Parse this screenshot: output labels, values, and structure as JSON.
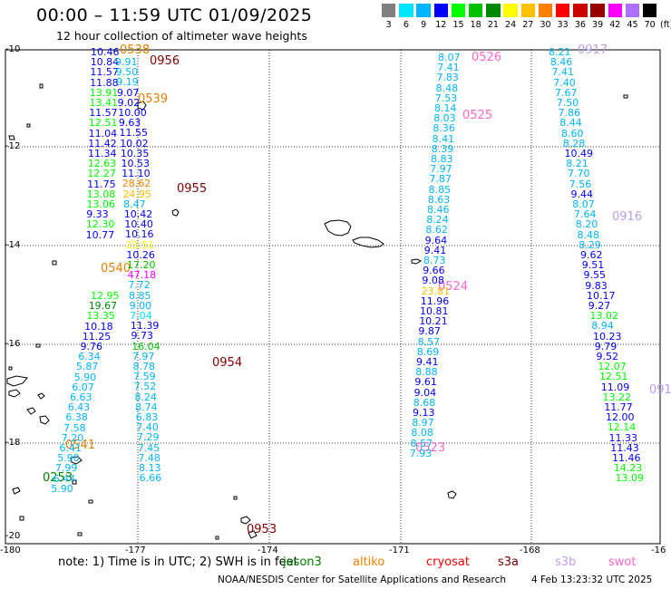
{
  "header": {
    "title": "00:00 – 11:59 UTC 01/09/2025",
    "subtitle": "12 hour collection of altimeter wave heights"
  },
  "color_scale": {
    "unit": "(ft)",
    "bins": [
      {
        "label": "3",
        "color": "#808080"
      },
      {
        "label": "6",
        "color": "#00e5ff"
      },
      {
        "label": "9",
        "color": "#00b4ff"
      },
      {
        "label": "12",
        "color": "#0000ff"
      },
      {
        "label": "15",
        "color": "#00ff00"
      },
      {
        "label": "18",
        "color": "#00c000"
      },
      {
        "label": "21",
        "color": "#008800"
      },
      {
        "label": "24",
        "color": "#ffff00"
      },
      {
        "label": "27",
        "color": "#ffc000"
      },
      {
        "label": "30",
        "color": "#ff8000"
      },
      {
        "label": "33",
        "color": "#ff0000"
      },
      {
        "label": "36",
        "color": "#cc0000"
      },
      {
        "label": "39",
        "color": "#990000"
      },
      {
        "label": "42",
        "color": "#ff00ff"
      },
      {
        "label": "45",
        "color": "#b070ff"
      },
      {
        "label": "70",
        "color": "#000000"
      }
    ]
  },
  "map": {
    "lat_labels": [
      "-10",
      "-12",
      "-14",
      "-16",
      "-18",
      "-20"
    ],
    "lon_labels": [
      "-180",
      "-177",
      "-174",
      "-171",
      "-168",
      "-16"
    ],
    "passes": [
      {
        "id": "0538",
        "color": "#e08000"
      },
      {
        "id": "0956",
        "color": "#800000"
      },
      {
        "id": "0539",
        "color": "#e08000"
      },
      {
        "id": "0955",
        "color": "#800000"
      },
      {
        "id": "0540",
        "color": "#e08000"
      },
      {
        "id": "0954",
        "color": "#800000"
      },
      {
        "id": "0541",
        "color": "#e08000"
      },
      {
        "id": "0253",
        "color": "#008000"
      },
      {
        "id": "0953",
        "color": "#800000"
      },
      {
        "id": "0526",
        "color": "#ff66cc"
      },
      {
        "id": "0525",
        "color": "#ff66cc"
      },
      {
        "id": "0524",
        "color": "#ff66cc"
      },
      {
        "id": "0523",
        "color": "#ff66cc"
      },
      {
        "id": "0917",
        "color": "#b8a0f0"
      },
      {
        "id": "0916",
        "color": "#b8a0f0"
      },
      {
        "id": "091",
        "color": "#b8a0f0"
      }
    ],
    "tracks": [
      {
        "name": "track-a",
        "x0": 100,
        "dx": -0.3,
        "y0": 52,
        "dy": 11.2,
        "values": [
          [
            "10.46",
            "#0000ff"
          ],
          [
            "10.84",
            "#0000ff"
          ],
          [
            "11.57",
            "#0000ff"
          ],
          [
            "11.88",
            "#0000ff"
          ],
          [
            "13.91",
            "#00ff00"
          ],
          [
            "13.41",
            "#00ff00"
          ],
          [
            "11.57",
            "#0000ff"
          ],
          [
            "12.51",
            "#00ff00"
          ],
          [
            "11.04",
            "#0000ff"
          ],
          [
            "11.42",
            "#0000ff"
          ],
          [
            "11.34",
            "#0000ff"
          ],
          [
            "12.63",
            "#00ff00"
          ],
          [
            "12.27",
            "#00ff00"
          ],
          [
            "11.75",
            "#0000ff"
          ],
          [
            "13.08",
            "#00ff00"
          ],
          [
            "13.06",
            "#00ff00"
          ],
          [
            "9.33",
            "#0000ff"
          ],
          [
            "12.30",
            "#00ff00"
          ],
          [
            "10.77",
            "#0000ff"
          ]
        ]
      },
      {
        "name": "track-b",
        "x0": 100,
        "dx": -2.3,
        "y0": 321,
        "dy": 11.2,
        "values": [
          [
            "12.95",
            "#00ff00"
          ],
          [
            "19.67",
            "#008800"
          ],
          [
            "13.35",
            "#00ff00"
          ],
          [
            "10.18",
            "#0000ff"
          ],
          [
            "11.25",
            "#0000ff"
          ],
          [
            "9.76",
            "#0000ff"
          ],
          [
            "6.34",
            "#00b4ff"
          ],
          [
            "5.87",
            "#00b4ff"
          ],
          [
            "5.90",
            "#00b4ff"
          ],
          [
            "6.07",
            "#00b4ff"
          ],
          [
            "6.63",
            "#00b4ff"
          ],
          [
            "6.43",
            "#00b4ff"
          ],
          [
            "6.38",
            "#00b4ff"
          ],
          [
            "7.58",
            "#00b4ff"
          ],
          [
            "7.20",
            "#00b4ff"
          ],
          [
            "6.41",
            "#00b4ff"
          ],
          [
            "5.90",
            "#00b4ff"
          ],
          [
            "7.99",
            "#00b4ff"
          ],
          [
            "6.44",
            "#00b4ff"
          ],
          [
            "5.90",
            "#00b4ff"
          ]
        ]
      },
      {
        "name": "track-c",
        "x0": 127,
        "dx": 0.65,
        "y0": 63,
        "dy": 11.2,
        "values": [
          [
            "9.91",
            "#00b4ff"
          ],
          [
            "9.50",
            "#00b4ff"
          ],
          [
            "9.19",
            "#00b4ff"
          ],
          [
            "9.07",
            "#0000ff"
          ],
          [
            "9.02",
            "#0000ff"
          ],
          [
            "10.00",
            "#0000ff"
          ],
          [
            "9.63",
            "#0000ff"
          ],
          [
            "11.55",
            "#0000ff"
          ],
          [
            "10.02",
            "#0000ff"
          ],
          [
            "10.35",
            "#0000ff"
          ],
          [
            "10.53",
            "#0000ff"
          ],
          [
            "11.10",
            "#0000ff"
          ],
          [
            "28.62",
            "#ff8000"
          ],
          [
            "24.95",
            "#ffc000"
          ],
          [
            "8.47",
            "#00b4ff"
          ],
          [
            "10.42",
            "#0000ff"
          ],
          [
            "10.40",
            "#0000ff"
          ],
          [
            "10.16",
            "#0000ff"
          ],
          [
            "23.51",
            "#ffff00"
          ],
          [
            "10.26",
            "#0000ff"
          ],
          [
            "17.20",
            "#00c000"
          ],
          [
            "47.18",
            "#ff00ff"
          ],
          [
            "7.72",
            "#00b4ff"
          ],
          [
            "8.85",
            "#00b4ff"
          ],
          [
            "9.00",
            "#00b4ff"
          ],
          [
            "7.04",
            "#00e5ff"
          ],
          [
            "11.39",
            "#0000ff"
          ],
          [
            "9.73",
            "#0000ff"
          ],
          [
            "16.04",
            "#00c000"
          ],
          [
            "7.97",
            "#00b4ff"
          ],
          [
            "8.78",
            "#00b4ff"
          ],
          [
            "7.59",
            "#00b4ff"
          ],
          [
            "7.52",
            "#00b4ff"
          ],
          [
            "8.24",
            "#00b4ff"
          ],
          [
            "8.74",
            "#00b4ff"
          ],
          [
            "6.83",
            "#00b4ff"
          ],
          [
            "7.40",
            "#00b4ff"
          ],
          [
            "7.29",
            "#00b4ff"
          ],
          [
            "7.45",
            "#00b4ff"
          ],
          [
            "7.48",
            "#00b4ff"
          ],
          [
            "8.13",
            "#00b4ff"
          ],
          [
            "6.66",
            "#00b4ff"
          ]
        ]
      },
      {
        "name": "track-d",
        "x0": 483,
        "dx": -0.8,
        "y0": 58,
        "dy": 11.2,
        "values": [
          [
            "8.07",
            "#00b4ff"
          ],
          [
            "7.41",
            "#00b4ff"
          ],
          [
            "7.83",
            "#00b4ff"
          ],
          [
            "8.48",
            "#00b4ff"
          ],
          [
            "7.53",
            "#00b4ff"
          ],
          [
            "8.14",
            "#00b4ff"
          ],
          [
            "8.03",
            "#00b4ff"
          ],
          [
            "8.36",
            "#00b4ff"
          ],
          [
            "8.41",
            "#00b4ff"
          ],
          [
            "8.39",
            "#00b4ff"
          ],
          [
            "8.83",
            "#00b4ff"
          ],
          [
            "7.97",
            "#00b4ff"
          ],
          [
            "7.87",
            "#00b4ff"
          ],
          [
            "8.85",
            "#00b4ff"
          ],
          [
            "8.63",
            "#00b4ff"
          ],
          [
            "8.46",
            "#00b4ff"
          ],
          [
            "8.24",
            "#00b4ff"
          ],
          [
            "8.62",
            "#00b4ff"
          ],
          [
            "9.64",
            "#0000ff"
          ],
          [
            "9.41",
            "#0000ff"
          ],
          [
            "8.73",
            "#00b4ff"
          ],
          [
            "9.66",
            "#0000ff"
          ],
          [
            "9.08",
            "#0000ff"
          ],
          [
            "23.81",
            "#ffc000"
          ],
          [
            "11.96",
            "#0000ff"
          ],
          [
            "10.81",
            "#0000ff"
          ],
          [
            "10.21",
            "#0000ff"
          ],
          [
            "9.87",
            "#0000ff"
          ],
          [
            "8.57",
            "#00b4ff"
          ],
          [
            "8.69",
            "#00b4ff"
          ],
          [
            "9.41",
            "#0000ff"
          ],
          [
            "8.88",
            "#00b4ff"
          ],
          [
            "9.61",
            "#0000ff"
          ],
          [
            "9.04",
            "#0000ff"
          ],
          [
            "8.68",
            "#00b4ff"
          ],
          [
            "9.13",
            "#0000ff"
          ],
          [
            "8.97",
            "#00b4ff"
          ],
          [
            "8.08",
            "#00b4ff"
          ],
          [
            "8.57",
            "#00b4ff"
          ],
          [
            "7.93",
            "#00b4ff"
          ]
        ]
      },
      {
        "name": "track-e",
        "x0": 605,
        "dx": 1.75,
        "y0": 52,
        "dy": 11.2,
        "values": [
          [
            "8.21",
            "#00b4ff"
          ],
          [
            "8.46",
            "#00b4ff"
          ],
          [
            "7.41",
            "#00b4ff"
          ],
          [
            "7.40",
            "#00b4ff"
          ],
          [
            "7.67",
            "#00b4ff"
          ],
          [
            "7.50",
            "#00b4ff"
          ],
          [
            "7.86",
            "#00b4ff"
          ],
          [
            "8.44",
            "#00b4ff"
          ],
          [
            "8.60",
            "#00b4ff"
          ],
          [
            "8.28",
            "#00b4ff"
          ],
          [
            "10.49",
            "#0000ff"
          ],
          [
            "8.21",
            "#00b4ff"
          ],
          [
            "7.70",
            "#00b4ff"
          ],
          [
            "7.56",
            "#00b4ff"
          ],
          [
            "9.44",
            "#0000ff"
          ],
          [
            "8.07",
            "#00b4ff"
          ],
          [
            "7.64",
            "#00b4ff"
          ],
          [
            "8.20",
            "#00b4ff"
          ],
          [
            "8.48",
            "#00b4ff"
          ],
          [
            "8.29",
            "#00b4ff"
          ],
          [
            "9.62",
            "#0000ff"
          ],
          [
            "9.51",
            "#0000ff"
          ],
          [
            "9.55",
            "#0000ff"
          ],
          [
            "9.83",
            "#0000ff"
          ],
          [
            "10.17",
            "#0000ff"
          ],
          [
            "9.27",
            "#0000ff"
          ],
          [
            "13.02",
            "#00ff00"
          ],
          [
            "8.94",
            "#00b4ff"
          ],
          [
            "10.23",
            "#0000ff"
          ],
          [
            "9.79",
            "#0000ff"
          ],
          [
            "9.52",
            "#0000ff"
          ],
          [
            "12.07",
            "#00ff00"
          ],
          [
            "12.51",
            "#00ff00"
          ],
          [
            "11.09",
            "#0000ff"
          ],
          [
            "13.22",
            "#00ff00"
          ],
          [
            "11.77",
            "#0000ff"
          ],
          [
            "12.00",
            "#0000ff"
          ],
          [
            "12.14",
            "#00ff00"
          ],
          [
            "11.33",
            "#0000ff"
          ],
          [
            "11.43",
            "#0000ff"
          ],
          [
            "11.46",
            "#0000ff"
          ],
          [
            "14.23",
            "#00ff00"
          ],
          [
            "13.09",
            "#00ff00"
          ]
        ]
      }
    ]
  },
  "footer": {
    "note": "note: 1) Time is in UTC; 2) SWH is in feet",
    "satellites": [
      {
        "label": "jason3",
        "color": "#008000"
      },
      {
        "label": "altiko",
        "color": "#ff8000"
      },
      {
        "label": "cryosat",
        "color": "#ff0000"
      },
      {
        "label": "s3a",
        "color": "#800000"
      },
      {
        "label": "s3b",
        "color": "#c0a0e8"
      },
      {
        "label": "swot",
        "color": "#ff66cc"
      }
    ],
    "credit": "NOAA/NESDIS Center for Satellite Applications and Research",
    "timestamp": "4 Feb 13:23:32 UTC 2025"
  }
}
